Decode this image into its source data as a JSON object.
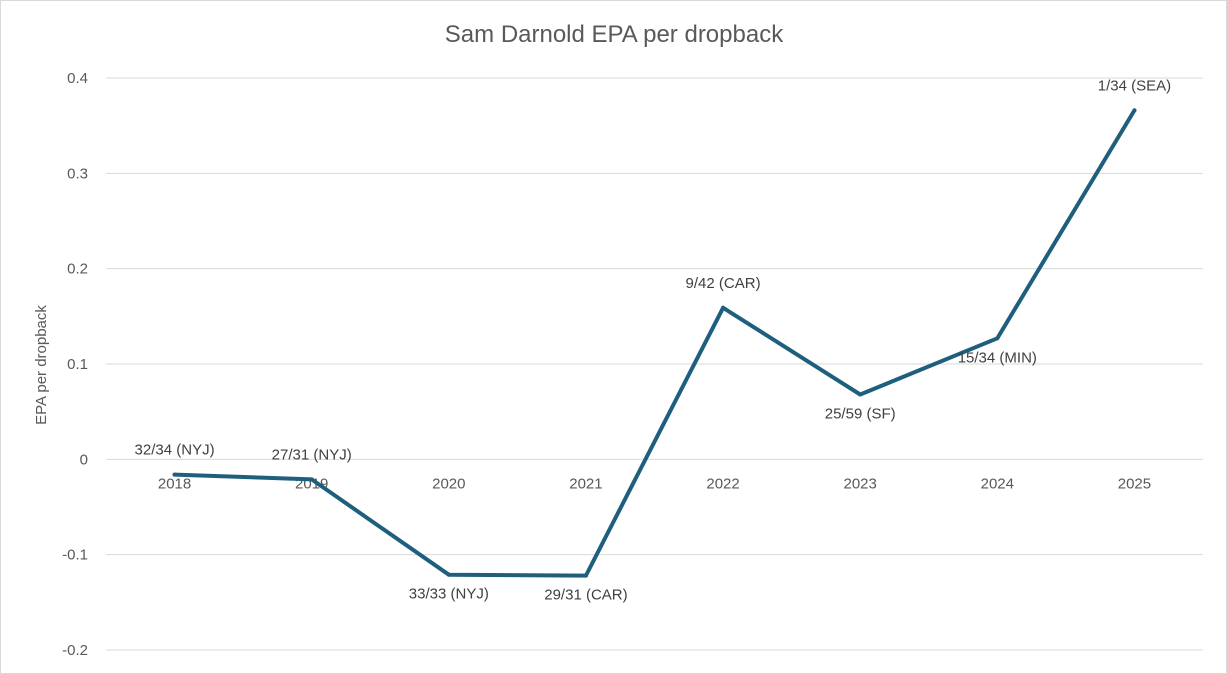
{
  "chart_data": {
    "type": "line",
    "title": "Sam Darnold EPA per dropback",
    "xlabel": "",
    "ylabel": "EPA per dropback",
    "ylim": [
      -0.2,
      0.4
    ],
    "yticks": [
      -0.2,
      -0.1,
      0,
      0.1,
      0.2,
      0.3,
      0.4
    ],
    "ytick_labels": [
      "-0.2",
      "-0.1",
      "0",
      "0.1",
      "0.2",
      "0.3",
      "0.4"
    ],
    "grid": true,
    "legend": "none",
    "categories": [
      "2018",
      "2019",
      "2020",
      "2021",
      "2022",
      "2023",
      "2024",
      "2025"
    ],
    "series": [
      {
        "name": "EPA per dropback",
        "color": "#1f5f7e",
        "values": [
          -0.016,
          -0.021,
          -0.121,
          -0.122,
          0.159,
          0.068,
          0.127,
          0.366
        ],
        "data_labels": [
          "32/34 (NYJ)",
          "27/31 (NYJ)",
          "33/33 (NYJ)",
          "29/31 (CAR)",
          "9/42 (CAR)",
          "25/59 (SF)",
          "15/34 (MIN)",
          "1/34 (SEA)"
        ]
      }
    ]
  }
}
